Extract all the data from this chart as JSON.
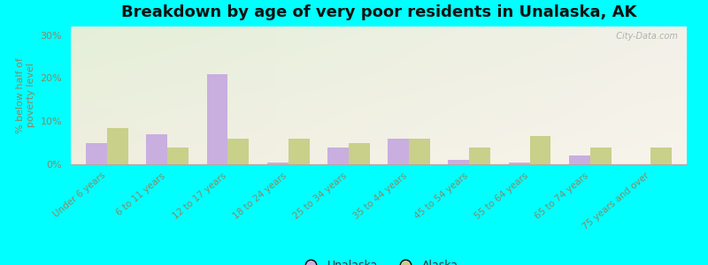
{
  "title": "Breakdown by age of very poor residents in Unalaska, AK",
  "ylabel": "% below half of\npoverty level",
  "categories": [
    "Under 6 years",
    "6 to 11 years",
    "12 to 17 years",
    "18 to 24 years",
    "25 to 34 years",
    "35 to 44 years",
    "45 to 54 years",
    "55 to 64 years",
    "65 to 74 years",
    "75 years and over"
  ],
  "unalaska_values": [
    5.0,
    7.0,
    21.0,
    0.5,
    4.0,
    6.0,
    1.0,
    0.5,
    2.0,
    0.0
  ],
  "alaska_values": [
    8.5,
    4.0,
    6.0,
    6.0,
    5.0,
    6.0,
    4.0,
    6.5,
    4.0,
    4.0
  ],
  "unalaska_color": "#c9aee0",
  "alaska_color": "#c8d08a",
  "bg_color_top_left": "#e4f0d8",
  "bg_color_bottom_right": "#f2f0e0",
  "outer_background": "#00ffff",
  "ylim": [
    0,
    32
  ],
  "yticks": [
    0,
    10,
    20,
    30
  ],
  "ytick_labels": [
    "0%",
    "10%",
    "20%",
    "30%"
  ],
  "title_fontsize": 13,
  "legend_labels": [
    "Unalaska",
    "Alaska"
  ],
  "bar_width": 0.35,
  "watermark": "  City-Data.com"
}
